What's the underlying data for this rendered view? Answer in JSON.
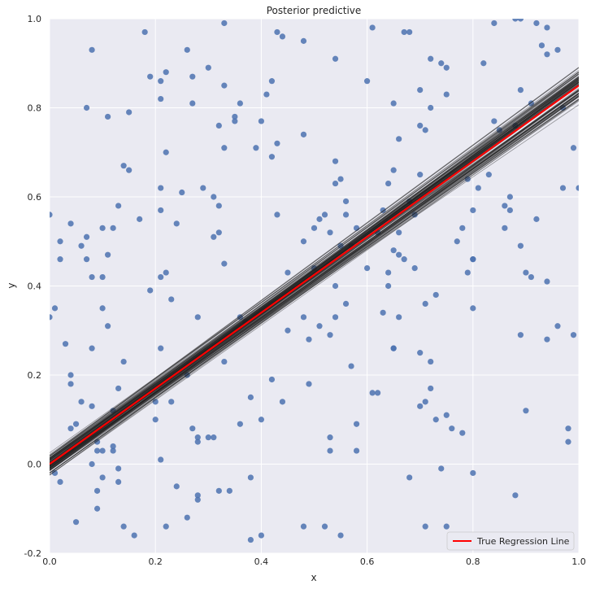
{
  "chart_data": {
    "type": "scatter",
    "title": "Posterior predictive",
    "xlabel": "x",
    "ylabel": "y",
    "xlim": [
      0,
      1
    ],
    "ylim": [
      -0.2,
      1
    ],
    "xticks": [
      "0.0",
      "0.2",
      "0.4",
      "0.6",
      "0.8",
      "1.0"
    ],
    "yticks": [
      "-0.2",
      "0.0",
      "0.2",
      "0.4",
      "0.6",
      "0.8",
      "1.0"
    ],
    "grid": true,
    "legend_position": "bottom-right",
    "colors": {
      "background": "#eaeaf2",
      "grid": "#ffffff",
      "points": "#4c72b0",
      "posterior_lines": "#222222",
      "true_line": "#ff0000"
    },
    "scatter_points": [
      [
        0.0,
        0.56
      ],
      [
        0.0,
        0.33
      ],
      [
        0.01,
        0.35
      ],
      [
        0.02,
        0.5
      ],
      [
        0.02,
        0.46
      ],
      [
        0.01,
        -0.02
      ],
      [
        0.02,
        -0.04
      ],
      [
        0.03,
        0.27
      ],
      [
        0.04,
        0.54
      ],
      [
        0.04,
        0.2
      ],
      [
        0.04,
        0.18
      ],
      [
        0.04,
        0.08
      ],
      [
        0.05,
        -0.13
      ],
      [
        0.05,
        0.09
      ],
      [
        0.06,
        0.14
      ],
      [
        0.06,
        0.49
      ],
      [
        0.07,
        0.8
      ],
      [
        0.07,
        0.46
      ],
      [
        0.07,
        0.51
      ],
      [
        0.08,
        0.42
      ],
      [
        0.08,
        0.26
      ],
      [
        0.08,
        0.0
      ],
      [
        0.08,
        0.93
      ],
      [
        0.08,
        0.13
      ],
      [
        0.09,
        -0.06
      ],
      [
        0.09,
        0.05
      ],
      [
        0.09,
        0.03
      ],
      [
        0.09,
        -0.1
      ],
      [
        0.1,
        0.42
      ],
      [
        0.1,
        0.35
      ],
      [
        0.1,
        0.53
      ],
      [
        0.1,
        -0.03
      ],
      [
        0.1,
        0.03
      ],
      [
        0.11,
        0.47
      ],
      [
        0.11,
        0.31
      ],
      [
        0.11,
        0.78
      ],
      [
        0.12,
        0.12
      ],
      [
        0.12,
        0.04
      ],
      [
        0.12,
        0.03
      ],
      [
        0.12,
        0.53
      ],
      [
        0.13,
        0.58
      ],
      [
        0.13,
        0.17
      ],
      [
        0.13,
        -0.01
      ],
      [
        0.13,
        -0.04
      ],
      [
        0.14,
        0.67
      ],
      [
        0.14,
        0.23
      ],
      [
        0.14,
        -0.14
      ],
      [
        0.15,
        0.79
      ],
      [
        0.15,
        0.66
      ],
      [
        0.16,
        -0.16
      ],
      [
        0.17,
        0.55
      ],
      [
        0.18,
        0.97
      ],
      [
        0.19,
        0.39
      ],
      [
        0.19,
        0.87
      ],
      [
        0.2,
        0.14
      ],
      [
        0.2,
        0.1
      ],
      [
        0.21,
        0.82
      ],
      [
        0.21,
        0.42
      ],
      [
        0.21,
        0.57
      ],
      [
        0.21,
        0.62
      ],
      [
        0.21,
        0.86
      ],
      [
        0.21,
        0.26
      ],
      [
        0.21,
        0.01
      ],
      [
        0.22,
        0.43
      ],
      [
        0.22,
        0.7
      ],
      [
        0.22,
        0.88
      ],
      [
        0.22,
        -0.14
      ],
      [
        0.23,
        0.37
      ],
      [
        0.23,
        0.14
      ],
      [
        0.24,
        0.54
      ],
      [
        0.24,
        -0.05
      ],
      [
        0.25,
        0.61
      ],
      [
        0.26,
        0.93
      ],
      [
        0.26,
        -0.12
      ],
      [
        0.26,
        0.2
      ],
      [
        0.27,
        0.87
      ],
      [
        0.27,
        0.08
      ],
      [
        0.27,
        0.81
      ],
      [
        0.28,
        0.06
      ],
      [
        0.28,
        -0.07
      ],
      [
        0.28,
        -0.08
      ],
      [
        0.28,
        0.33
      ],
      [
        0.28,
        0.05
      ],
      [
        0.29,
        0.62
      ],
      [
        0.3,
        0.06
      ],
      [
        0.3,
        0.89
      ],
      [
        0.31,
        0.06
      ],
      [
        0.31,
        0.51
      ],
      [
        0.31,
        0.6
      ],
      [
        0.32,
        0.58
      ],
      [
        0.32,
        0.52
      ],
      [
        0.32,
        0.76
      ],
      [
        0.32,
        -0.06
      ],
      [
        0.33,
        0.99
      ],
      [
        0.33,
        0.85
      ],
      [
        0.33,
        0.71
      ],
      [
        0.33,
        0.45
      ],
      [
        0.33,
        0.23
      ],
      [
        0.34,
        -0.06
      ],
      [
        0.35,
        0.78
      ],
      [
        0.35,
        0.77
      ],
      [
        0.36,
        0.81
      ],
      [
        0.36,
        0.09
      ],
      [
        0.36,
        0.33
      ],
      [
        0.37,
        0.32
      ],
      [
        0.38,
        -0.03
      ],
      [
        0.38,
        0.15
      ],
      [
        0.38,
        -0.17
      ],
      [
        0.39,
        0.71
      ],
      [
        0.4,
        0.77
      ],
      [
        0.4,
        -0.16
      ],
      [
        0.4,
        0.1
      ],
      [
        0.41,
        0.83
      ],
      [
        0.42,
        0.19
      ],
      [
        0.42,
        0.86
      ],
      [
        0.42,
        0.69
      ],
      [
        0.43,
        0.72
      ],
      [
        0.43,
        0.56
      ],
      [
        0.43,
        0.97
      ],
      [
        0.44,
        0.14
      ],
      [
        0.44,
        0.96
      ],
      [
        0.45,
        0.3
      ],
      [
        0.45,
        0.43
      ],
      [
        0.48,
        0.5
      ],
      [
        0.48,
        0.74
      ],
      [
        0.48,
        0.95
      ],
      [
        0.48,
        -0.14
      ],
      [
        0.48,
        0.33
      ],
      [
        0.49,
        0.18
      ],
      [
        0.49,
        0.28
      ],
      [
        0.5,
        0.44
      ],
      [
        0.5,
        0.53
      ],
      [
        0.51,
        0.31
      ],
      [
        0.51,
        0.55
      ],
      [
        0.52,
        -0.14
      ],
      [
        0.52,
        0.56
      ],
      [
        0.53,
        0.06
      ],
      [
        0.53,
        0.29
      ],
      [
        0.53,
        0.52
      ],
      [
        0.53,
        0.03
      ],
      [
        0.54,
        0.33
      ],
      [
        0.54,
        0.4
      ],
      [
        0.54,
        0.63
      ],
      [
        0.54,
        0.68
      ],
      [
        0.54,
        0.91
      ],
      [
        0.55,
        0.64
      ],
      [
        0.55,
        -0.16
      ],
      [
        0.55,
        0.49
      ],
      [
        0.56,
        0.36
      ],
      [
        0.56,
        0.56
      ],
      [
        0.56,
        0.59
      ],
      [
        0.57,
        0.22
      ],
      [
        0.57,
        0.49
      ],
      [
        0.58,
        0.53
      ],
      [
        0.58,
        0.09
      ],
      [
        0.58,
        0.03
      ],
      [
        0.6,
        0.86
      ],
      [
        0.6,
        0.44
      ],
      [
        0.61,
        0.98
      ],
      [
        0.61,
        0.16
      ],
      [
        0.62,
        0.16
      ],
      [
        0.62,
        0.52
      ],
      [
        0.63,
        0.34
      ],
      [
        0.63,
        0.57
      ],
      [
        0.64,
        0.4
      ],
      [
        0.64,
        0.63
      ],
      [
        0.64,
        0.43
      ],
      [
        0.65,
        0.26
      ],
      [
        0.65,
        0.26
      ],
      [
        0.65,
        0.48
      ],
      [
        0.65,
        0.66
      ],
      [
        0.65,
        0.81
      ],
      [
        0.66,
        0.73
      ],
      [
        0.66,
        0.33
      ],
      [
        0.66,
        0.52
      ],
      [
        0.66,
        0.47
      ],
      [
        0.67,
        0.97
      ],
      [
        0.67,
        0.46
      ],
      [
        0.68,
        0.97
      ],
      [
        0.68,
        0.59
      ],
      [
        0.68,
        -0.03
      ],
      [
        0.69,
        0.44
      ],
      [
        0.69,
        0.56
      ],
      [
        0.7,
        0.76
      ],
      [
        0.7,
        0.25
      ],
      [
        0.7,
        0.13
      ],
      [
        0.7,
        0.65
      ],
      [
        0.7,
        0.84
      ],
      [
        0.71,
        0.14
      ],
      [
        0.71,
        0.75
      ],
      [
        0.71,
        0.36
      ],
      [
        0.71,
        -0.14
      ],
      [
        0.72,
        0.8
      ],
      [
        0.72,
        0.17
      ],
      [
        0.72,
        0.23
      ],
      [
        0.72,
        0.91
      ],
      [
        0.73,
        0.1
      ],
      [
        0.73,
        0.38
      ],
      [
        0.74,
        -0.01
      ],
      [
        0.74,
        0.9
      ],
      [
        0.75,
        0.83
      ],
      [
        0.75,
        0.89
      ],
      [
        0.75,
        -0.14
      ],
      [
        0.75,
        0.11
      ],
      [
        0.76,
        0.08
      ],
      [
        0.77,
        0.5
      ],
      [
        0.78,
        0.53
      ],
      [
        0.78,
        0.07
      ],
      [
        0.79,
        0.64
      ],
      [
        0.79,
        0.43
      ],
      [
        0.8,
        0.46
      ],
      [
        0.8,
        0.46
      ],
      [
        0.8,
        0.35
      ],
      [
        0.8,
        0.57
      ],
      [
        0.8,
        -0.02
      ],
      [
        0.81,
        0.62
      ],
      [
        0.82,
        0.9
      ],
      [
        0.83,
        0.65
      ],
      [
        0.84,
        0.99
      ],
      [
        0.84,
        0.77
      ],
      [
        0.85,
        0.75
      ],
      [
        0.86,
        0.58
      ],
      [
        0.86,
        0.53
      ],
      [
        0.87,
        0.6
      ],
      [
        0.87,
        0.57
      ],
      [
        0.88,
        1.0
      ],
      [
        0.88,
        0.76
      ],
      [
        0.88,
        -0.07
      ],
      [
        0.89,
        1.0
      ],
      [
        0.89,
        0.84
      ],
      [
        0.89,
        0.29
      ],
      [
        0.89,
        0.49
      ],
      [
        0.9,
        0.43
      ],
      [
        0.9,
        0.12
      ],
      [
        0.91,
        0.81
      ],
      [
        0.91,
        0.42
      ],
      [
        0.92,
        0.55
      ],
      [
        0.92,
        0.99
      ],
      [
        0.93,
        0.94
      ],
      [
        0.94,
        0.92
      ],
      [
        0.94,
        0.98
      ],
      [
        0.94,
        0.28
      ],
      [
        0.94,
        0.41
      ],
      [
        0.96,
        0.93
      ],
      [
        0.96,
        0.31
      ],
      [
        0.97,
        0.62
      ],
      [
        0.97,
        0.8
      ],
      [
        0.98,
        0.08
      ],
      [
        0.98,
        0.05
      ],
      [
        0.99,
        0.71
      ],
      [
        1.0,
        0.62
      ],
      [
        0.99,
        0.29
      ]
    ],
    "true_line": {
      "name": "True Regression Line",
      "slope": 0.85,
      "intercept": 0.0
    },
    "posterior_lines": {
      "count": 100,
      "slope_mean": 0.85,
      "slope_sd": 0.015,
      "intercept_mean": 0.0,
      "intercept_sd": 0.012
    }
  }
}
